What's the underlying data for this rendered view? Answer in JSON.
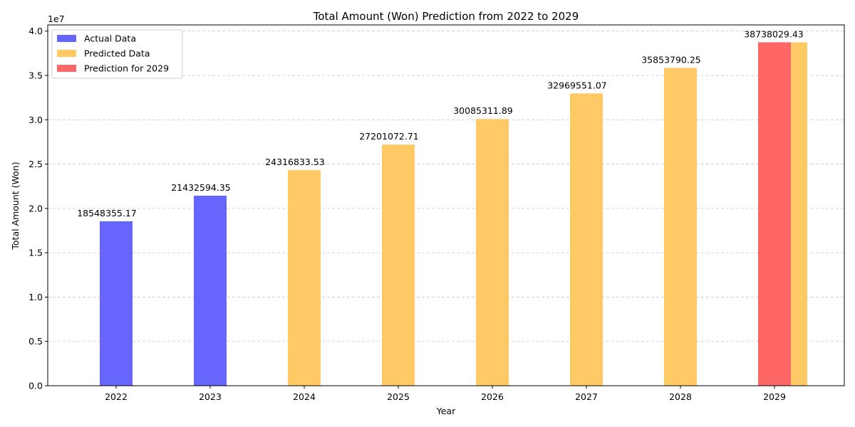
{
  "chart_data": {
    "type": "bar",
    "title": "Total Amount (Won) Prediction from 2022 to 2029",
    "xlabel": "Year",
    "ylabel": "Total Amount (Won)",
    "y_offset_label": "1e7",
    "y_scale": 10000000,
    "ylim": [
      0,
      40700000
    ],
    "y_ticks": [
      0,
      5000000,
      10000000,
      15000000,
      20000000,
      25000000,
      30000000,
      35000000,
      40000000
    ],
    "y_tick_labels": [
      "0.0",
      "0.5",
      "1.0",
      "1.5",
      "2.0",
      "2.5",
      "3.0",
      "3.5",
      "4.0"
    ],
    "categories": [
      "2022",
      "2023",
      "2024",
      "2025",
      "2026",
      "2027",
      "2028",
      "2029"
    ],
    "grid": "y-dashed",
    "legend_position": "top-left",
    "series": [
      {
        "name": "Actual Data",
        "color": "#6666ff",
        "points": [
          {
            "x": "2022",
            "value": 18548355.17
          },
          {
            "x": "2023",
            "value": 21432594.35
          }
        ]
      },
      {
        "name": "Predicted Data",
        "color": "#ffca66",
        "points": [
          {
            "x": "2024",
            "value": 24316833.53
          },
          {
            "x": "2025",
            "value": 27201072.71
          },
          {
            "x": "2026",
            "value": 30085311.89
          },
          {
            "x": "2027",
            "value": 32969551.07
          },
          {
            "x": "2028",
            "value": 35853790.25
          },
          {
            "x": "2029",
            "value": 38738029.43
          }
        ]
      },
      {
        "name": "Prediction for 2029",
        "color": "#ff6666",
        "points": [
          {
            "x": "2029",
            "value": 38738029.43
          }
        ]
      }
    ],
    "data_labels": [
      {
        "x": "2022",
        "text": "18548355.17",
        "value": 18548355.17
      },
      {
        "x": "2023",
        "text": "21432594.35",
        "value": 21432594.35
      },
      {
        "x": "2024",
        "text": "24316833.53",
        "value": 24316833.53
      },
      {
        "x": "2025",
        "text": "27201072.71",
        "value": 27201072.71
      },
      {
        "x": "2026",
        "text": "30085311.89",
        "value": 30085311.89
      },
      {
        "x": "2027",
        "text": "32969551.07",
        "value": 32969551.07
      },
      {
        "x": "2028",
        "text": "35853790.25",
        "value": 35853790.25
      },
      {
        "x": "2029",
        "text": "38738029.43",
        "value": 38738029.43
      }
    ]
  }
}
